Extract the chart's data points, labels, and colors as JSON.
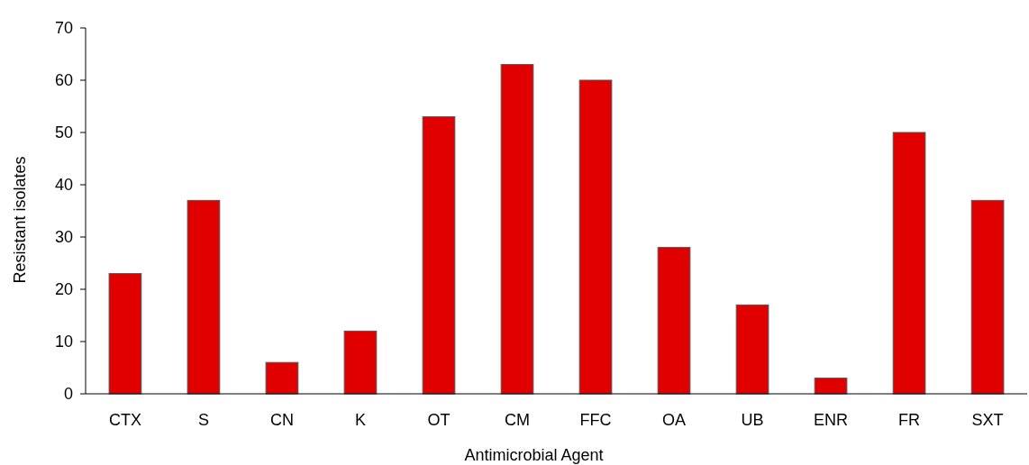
{
  "chart_data": {
    "type": "bar",
    "xlabel": "Antimicrobial Agent",
    "ylabel": "Resistant isolates",
    "categories": [
      "CTX",
      "S",
      "CN",
      "K",
      "OT",
      "CM",
      "FFC",
      "OA",
      "UB",
      "ENR",
      "FR",
      "SXT"
    ],
    "values": [
      23,
      37,
      6,
      12,
      53,
      63,
      60,
      28,
      17,
      3,
      50,
      37
    ],
    "color": "#e00000",
    "ylim": [
      0,
      70
    ],
    "yticks": [
      0,
      10,
      20,
      30,
      40,
      50,
      60,
      70
    ],
    "grid": false
  }
}
